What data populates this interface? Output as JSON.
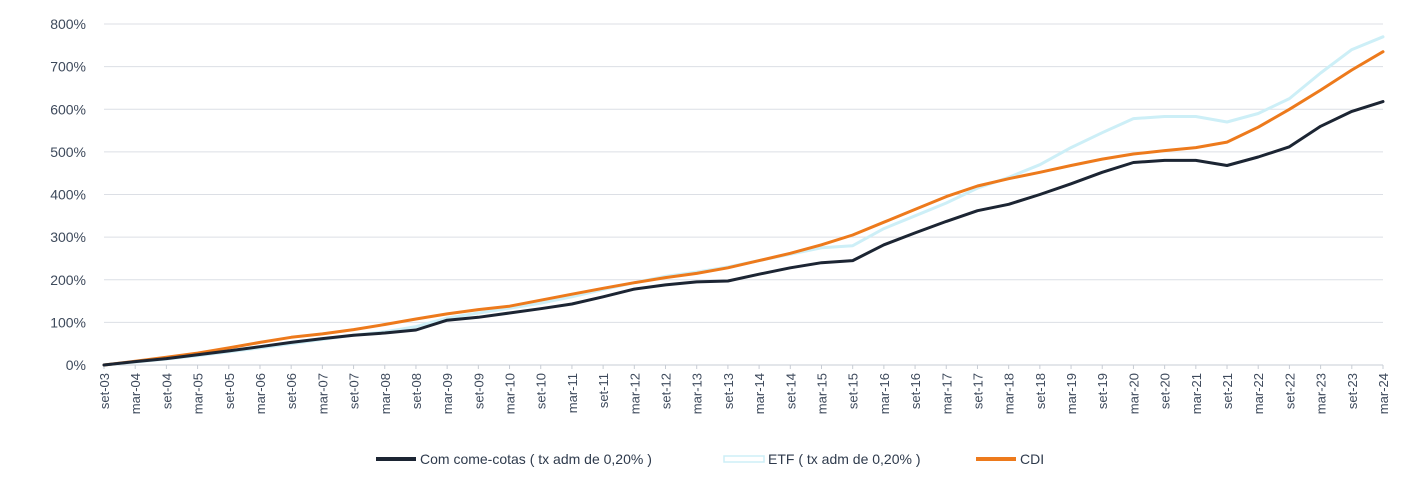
{
  "chart_data": {
    "type": "line",
    "title": "",
    "xlabel": "",
    "ylabel": "",
    "ylim": [
      0,
      800
    ],
    "yticks": [
      0,
      100,
      200,
      300,
      400,
      500,
      600,
      700,
      800
    ],
    "ytick_labels": [
      "0%",
      "100%",
      "200%",
      "300%",
      "400%",
      "500%",
      "600%",
      "700%",
      "800%"
    ],
    "categories": [
      "set-03",
      "mar-04",
      "set-04",
      "mar-05",
      "set-05",
      "mar-06",
      "set-06",
      "mar-07",
      "set-07",
      "mar-08",
      "set-08",
      "mar-09",
      "set-09",
      "mar-10",
      "set-10",
      "mar-11",
      "set-11",
      "mar-12",
      "set-12",
      "mar-13",
      "set-13",
      "mar-14",
      "set-14",
      "mar-15",
      "set-15",
      "mar-16",
      "set-16",
      "mar-17",
      "set-17",
      "mar-18",
      "set-18",
      "mar-19",
      "set-19",
      "mar-20",
      "set-20",
      "mar-21",
      "set-21",
      "mar-22",
      "set-22",
      "mar-23",
      "set-23",
      "mar-24"
    ],
    "grid": true,
    "legend_position": "bottom",
    "series": [
      {
        "name": "ETF ( tx adm de 0,20% )",
        "color": "#cdeff7",
        "values": [
          0,
          7,
          14,
          22,
          31,
          40,
          50,
          60,
          70,
          78,
          90,
          110,
          122,
          133,
          145,
          160,
          177,
          193,
          208,
          218,
          230,
          245,
          260,
          275,
          280,
          320,
          350,
          380,
          415,
          440,
          470,
          510,
          545,
          578,
          583,
          583,
          570,
          590,
          625,
          685,
          740,
          770
        ]
      },
      {
        "name": "CDI",
        "color": "#ed7a1c",
        "values": [
          0,
          9,
          18,
          28,
          40,
          53,
          65,
          73,
          83,
          95,
          108,
          120,
          130,
          138,
          152,
          166,
          180,
          193,
          205,
          215,
          228,
          245,
          262,
          282,
          305,
          335,
          365,
          395,
          420,
          437,
          452,
          468,
          483,
          495,
          503,
          510,
          523,
          558,
          600,
          645,
          692,
          735
        ]
      },
      {
        "name": "Com come-cotas ( tx adm de 0,20% )",
        "color": "#1c2533",
        "values": [
          0,
          8,
          15,
          24,
          33,
          43,
          53,
          62,
          70,
          75,
          82,
          105,
          112,
          122,
          132,
          143,
          160,
          178,
          188,
          195,
          197,
          213,
          228,
          240,
          245,
          282,
          310,
          337,
          362,
          377,
          400,
          425,
          452,
          475,
          480,
          480,
          468,
          488,
          512,
          560,
          595,
          618
        ]
      }
    ],
    "legend": [
      {
        "label": "Com come-cotas ( tx adm de 0,20% )",
        "color": "#1c2533",
        "border": ""
      },
      {
        "label": "ETF ( tx adm de 0,20% )",
        "color": "#ffffff",
        "border": "#cdeff7"
      },
      {
        "label": "CDI",
        "color": "#ed7a1c",
        "border": ""
      }
    ]
  }
}
